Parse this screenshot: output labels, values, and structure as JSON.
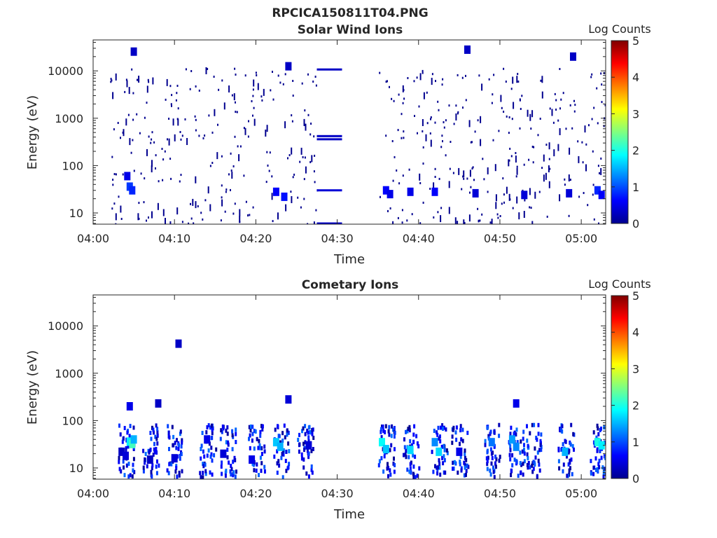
{
  "figure": {
    "title": "RPCICA150811T04.PNG"
  },
  "colorscale": {
    "stops": [
      "#00008f",
      "#0000ff",
      "#0080ff",
      "#00ffff",
      "#80ff80",
      "#ffff00",
      "#ff8000",
      "#ff0000",
      "#800000"
    ],
    "empty": "#ffffff"
  },
  "chart_data": [
    {
      "type": "heatmap",
      "title": "Solar Wind Ions",
      "xlabel": "Time",
      "ylabel": "Energy (eV)",
      "yscale": "log",
      "xlim": [
        "04:00",
        "05:03"
      ],
      "ylim": [
        5.8,
        45000
      ],
      "xticks": [
        "04:00",
        "04:10",
        "04:20",
        "04:30",
        "04:40",
        "04:50",
        "05:00"
      ],
      "yticks": [
        {
          "value": 10,
          "label": "10"
        },
        {
          "value": 100,
          "label": "100"
        },
        {
          "value": 1000,
          "label": "1000"
        },
        {
          "value": 10000,
          "label": "10000"
        }
      ],
      "colorbar": {
        "label": "Log Counts",
        "min": 0,
        "max": 5,
        "ticks": [
          "0",
          "1",
          "2",
          "3",
          "4",
          "5"
        ]
      },
      "data_gap": [
        "04:31",
        "04:35"
      ],
      "cells": [
        {
          "t": "04:30",
          "e": 10700,
          "v": 0.3
        },
        {
          "t": "04:30",
          "e": 420,
          "v": 0.3
        },
        {
          "t": "04:30",
          "e": 360,
          "v": 0.3
        },
        {
          "t": "04:30",
          "e": 30,
          "v": 0.4
        },
        {
          "t": "04:30",
          "e": 6,
          "v": 0.3
        },
        {
          "t": "04:04.5",
          "e": 36,
          "v": 0.9
        },
        {
          "t": "04:04.8",
          "e": 30,
          "v": 0.8
        },
        {
          "t": "04:04.2",
          "e": 60,
          "v": 0.5
        },
        {
          "t": "04:05",
          "e": 25500,
          "v": 0.3
        },
        {
          "t": "04:22.5",
          "e": 28,
          "v": 0.6
        },
        {
          "t": "04:23.5",
          "e": 22,
          "v": 0.7
        },
        {
          "t": "04:24",
          "e": 12500,
          "v": 0.3
        },
        {
          "t": "04:36",
          "e": 30,
          "v": 0.6
        },
        {
          "t": "04:36.5",
          "e": 25,
          "v": 0.5
        },
        {
          "t": "04:39",
          "e": 28,
          "v": 0.5
        },
        {
          "t": "04:42",
          "e": 28,
          "v": 0.6
        },
        {
          "t": "04:46",
          "e": 28000,
          "v": 0.3
        },
        {
          "t": "04:47",
          "e": 26,
          "v": 0.4
        },
        {
          "t": "04:53",
          "e": 24,
          "v": 0.4
        },
        {
          "t": "04:58.5",
          "e": 26,
          "v": 0.4
        },
        {
          "t": "04:59",
          "e": 20000,
          "v": 0.3
        },
        {
          "t": "05:02",
          "e": 30,
          "v": 0.8
        },
        {
          "t": "05:02.5",
          "e": 24,
          "v": 0.6
        }
      ]
    },
    {
      "type": "heatmap",
      "title": "Cometary Ions",
      "xlabel": "Time",
      "ylabel": "Energy (eV)",
      "yscale": "log",
      "xlim": [
        "04:00",
        "05:03"
      ],
      "ylim": [
        5.8,
        45000
      ],
      "xticks": [
        "04:00",
        "04:10",
        "04:20",
        "04:30",
        "04:40",
        "04:50",
        "05:00"
      ],
      "yticks": [
        {
          "value": 10,
          "label": "10"
        },
        {
          "value": 100,
          "label": "100"
        },
        {
          "value": 1000,
          "label": "1000"
        },
        {
          "value": 10000,
          "label": "10000"
        }
      ],
      "colorbar": {
        "label": "Log Counts",
        "min": 0,
        "max": 5,
        "ticks": [
          "0",
          "1",
          "2",
          "3",
          "4",
          "5"
        ]
      },
      "cells": [
        {
          "t": "04:03.5",
          "e": 22,
          "v": 0.3
        },
        {
          "t": "04:04",
          "e": 18,
          "v": 0.4
        },
        {
          "t": "04:04.5",
          "e": 36,
          "v": 1.8
        },
        {
          "t": "04:04.8",
          "e": 32,
          "v": 2.2
        },
        {
          "t": "04:05",
          "e": 40,
          "v": 1.5
        },
        {
          "t": "04:04.5",
          "e": 200,
          "v": 0.5
        },
        {
          "t": "04:07",
          "e": 15,
          "v": 0.3
        },
        {
          "t": "04:08",
          "e": 230,
          "v": 0.3
        },
        {
          "t": "04:10",
          "e": 16,
          "v": 0.4
        },
        {
          "t": "04:10.5",
          "e": 4200,
          "v": 0.3
        },
        {
          "t": "04:14",
          "e": 40,
          "v": 0.5
        },
        {
          "t": "04:16",
          "e": 20,
          "v": 0.4
        },
        {
          "t": "04:19.5",
          "e": 15,
          "v": 0.5
        },
        {
          "t": "04:22.5",
          "e": 35,
          "v": 1.6
        },
        {
          "t": "04:23",
          "e": 28,
          "v": 1.5
        },
        {
          "t": "04:24",
          "e": 280,
          "v": 0.4
        },
        {
          "t": "04:26.5",
          "e": 30,
          "v": 0.4
        },
        {
          "t": "04:35.5",
          "e": 35,
          "v": 1.9
        },
        {
          "t": "04:36",
          "e": 25,
          "v": 1.6
        },
        {
          "t": "04:39",
          "e": 24,
          "v": 1.7
        },
        {
          "t": "04:42",
          "e": 35,
          "v": 1.3
        },
        {
          "t": "04:42.5",
          "e": 22,
          "v": 1.7
        },
        {
          "t": "04:45",
          "e": 22,
          "v": 0.5
        },
        {
          "t": "04:49",
          "e": 35,
          "v": 1.2
        },
        {
          "t": "04:51.5",
          "e": 40,
          "v": 1.4
        },
        {
          "t": "04:52",
          "e": 28,
          "v": 1.3
        },
        {
          "t": "04:52",
          "e": 230,
          "v": 0.5
        },
        {
          "t": "04:58",
          "e": 22,
          "v": 1.5
        },
        {
          "t": "05:02",
          "e": 35,
          "v": 2.0
        },
        {
          "t": "05:02.5",
          "e": 30,
          "v": 1.8
        }
      ]
    }
  ]
}
